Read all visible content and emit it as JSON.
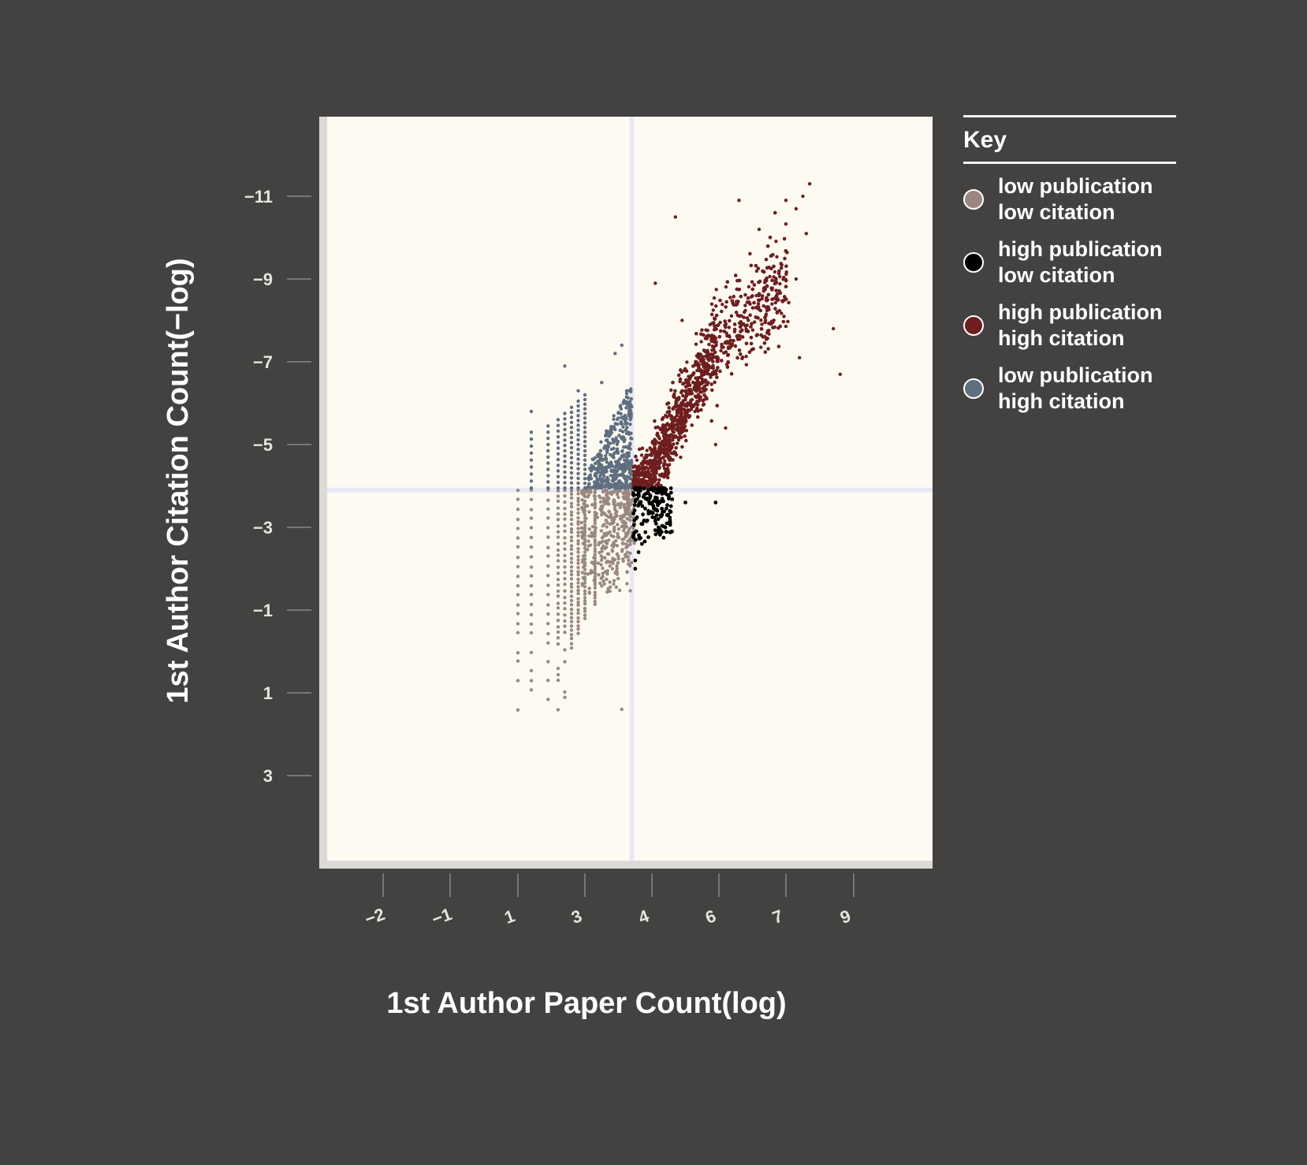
{
  "chart_data": {
    "type": "scatter",
    "title": "",
    "xlabel": "1st Author Paper Count(log)",
    "ylabel": "1st Author Citation Count(−log)",
    "x_ticks": [
      "−2",
      "−1",
      "1",
      "3",
      "4",
      "6",
      "7",
      "9"
    ],
    "y_ticks": [
      "−11",
      "−9",
      "−7",
      "−5",
      "−3",
      "−1",
      "1",
      "3"
    ],
    "x_threshold": 3.7,
    "y_threshold": -3.9,
    "grid": false,
    "legend_position": "right",
    "legend_title": "Key",
    "series": [
      {
        "name": "low publication low citation",
        "label_lines": [
          "low publication",
          "low citation"
        ],
        "color": "#9a8880",
        "point_density": "dense columns at discrete x values, from y ≈ +1.4 up to the citation threshold",
        "x_range": [
          1.0,
          3.7
        ],
        "y_range": [
          -3.9,
          1.4
        ]
      },
      {
        "name": "high publication low citation",
        "label_lines": [
          "high publication",
          "low citation"
        ],
        "color": "#000000",
        "x_range": [
          3.7,
          5.0
        ],
        "y_range": [
          -3.9,
          -1.9
        ],
        "outliers": [
          [
            5.9,
            -3.6
          ]
        ]
      },
      {
        "name": "high publication high citation",
        "label_lines": [
          "high publication",
          "high citation"
        ],
        "color": "#6e1e1e",
        "x_range": [
          3.7,
          8.6
        ],
        "y_range": [
          -11.3,
          -3.9
        ]
      },
      {
        "name": "low publication high citation",
        "label_lines": [
          "low publication",
          "high citation"
        ],
        "color": "#5f6f80",
        "x_range": [
          1.4,
          3.7
        ],
        "y_range": [
          -7.4,
          -3.9
        ]
      }
    ]
  }
}
